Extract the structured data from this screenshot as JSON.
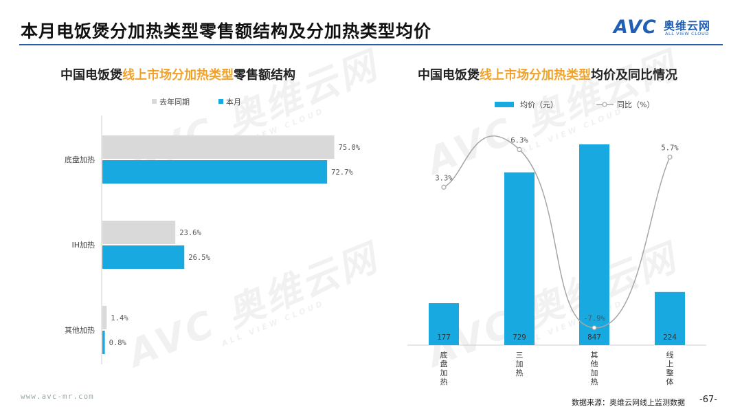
{
  "header": {
    "title": "本月电饭煲分加热类型零售额结构及分加热类型均价",
    "logo_mark": "AVC",
    "logo_cn": "奥维云网",
    "logo_en": "ALL VIEW CLOUD"
  },
  "watermark": {
    "brand": "AVC 奥维云网",
    "tagline": "ALL VIEW CLOUD"
  },
  "left": {
    "title_pre": "中国电饭煲",
    "title_hl": "线上市场分加热类型",
    "title_post": "零售额结构"
  },
  "right": {
    "title_pre": "中国电饭煲",
    "title_hl": "线上市场分加热类型",
    "title_post": "均价及同比情况"
  },
  "chart_data": [
    {
      "type": "bar",
      "orientation": "horizontal",
      "categories": [
        "底盘加热",
        "IH加热",
        "其他加热"
      ],
      "series": [
        {
          "name": "去年同期",
          "values": [
            75.0,
            23.6,
            1.4
          ],
          "labels": [
            "75.0%",
            "23.6%",
            "1.4%"
          ],
          "color": "#d9d9d9"
        },
        {
          "name": "本月",
          "values": [
            72.7,
            26.5,
            0.8
          ],
          "labels": [
            "72.7%",
            "26.5%",
            "0.8%"
          ],
          "color": "#19a9e1"
        }
      ],
      "xlim": [
        0,
        100
      ],
      "legend": "top-left"
    },
    {
      "type": "bar",
      "categories": [
        "底盘加热",
        "三加热",
        "其他加热",
        "线上整体"
      ],
      "series": [
        {
          "name": "均价（元）",
          "values": [
            177,
            729,
            847,
            224
          ],
          "labels": [
            "177",
            "729",
            "847",
            "224"
          ],
          "color": "#19a9e1"
        },
        {
          "name": "同比（%）",
          "type": "line",
          "values": [
            3.3,
            6.3,
            -7.9,
            5.7
          ],
          "labels": [
            "3.3%",
            "6.3%",
            "-7.9%",
            "5.7%"
          ],
          "color": "#a6a6a6"
        }
      ],
      "legend": "top"
    }
  ],
  "footer": {
    "url": "www.avc-mr.com",
    "source": "数据来源：奥维云网线上监测数据",
    "page": "-67-"
  }
}
